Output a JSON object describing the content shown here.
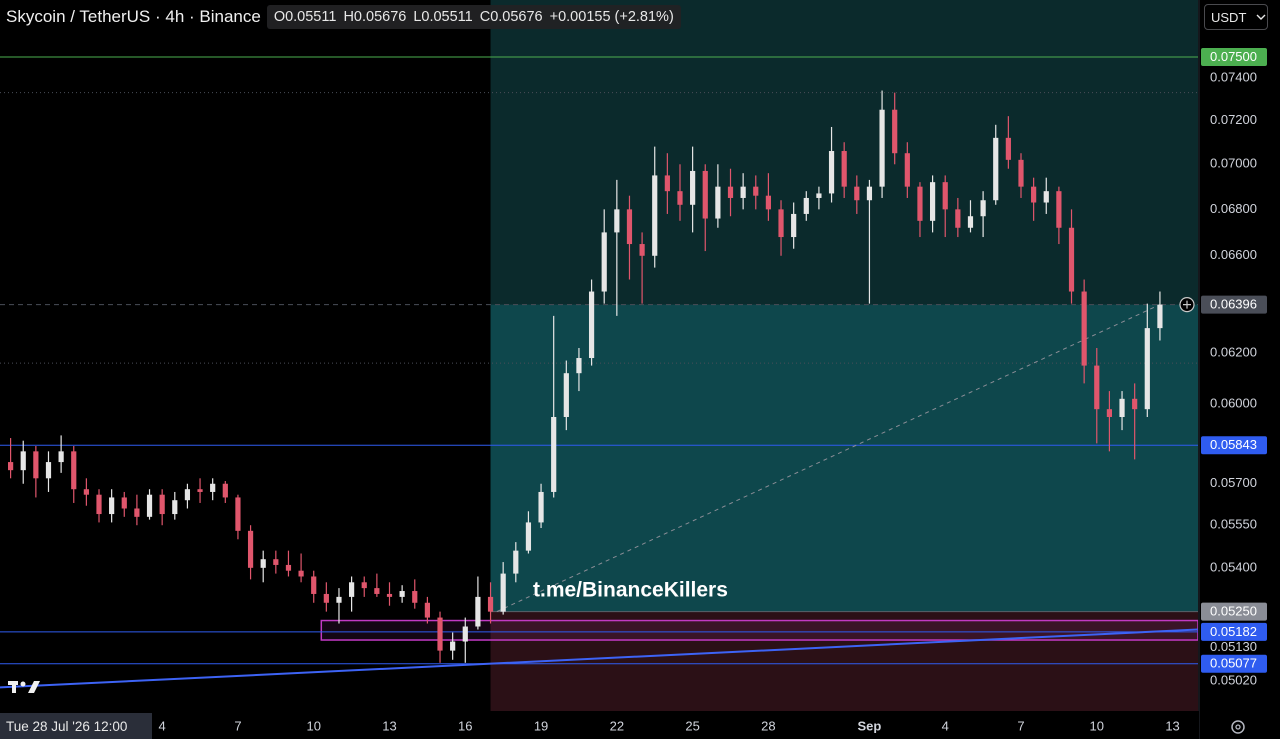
{
  "chart_data": {
    "type": "candlestick",
    "title": "Skycoin / TetherUS · 4h · Binance",
    "ohlc_labels": {
      "open": "O0.05511",
      "high": "H0.05676",
      "low": "L0.05511",
      "close": "C0.05676",
      "change": "+0.00155 (+2.81%)"
    },
    "currency": "USDT",
    "crosshair_label": "Tue 28 Jul '26 12:00",
    "annotation": "t.me/BinanceKillers",
    "log_scale": true,
    "up_color": "#e6e6e6",
    "down_color": "#e0566c",
    "ylim": [
      0.04925,
      0.0778
    ],
    "yticks": [
      {
        "value": 0.074,
        "label": "0.07400"
      },
      {
        "value": 0.072,
        "label": "0.07200"
      },
      {
        "value": 0.07,
        "label": "0.07000"
      },
      {
        "value": 0.068,
        "label": "0.06800"
      },
      {
        "value": 0.066,
        "label": "0.06600"
      },
      {
        "value": 0.062,
        "label": "0.06200"
      },
      {
        "value": 0.06,
        "label": "0.06000"
      },
      {
        "value": 0.057,
        "label": "0.05700"
      },
      {
        "value": 0.0555,
        "label": "0.05550"
      },
      {
        "value": 0.054,
        "label": "0.05400"
      },
      {
        "value": 0.0513,
        "label": "0.05130"
      },
      {
        "value": 0.0502,
        "label": "0.05020"
      }
    ],
    "levels": [
      {
        "value": 0.075,
        "label": "0.07500",
        "color": "#4caf50",
        "line": "solid"
      },
      {
        "value": 0.06396,
        "label": "0.06396",
        "color": "#4a4e58",
        "line": "dashed"
      },
      {
        "value": 0.05843,
        "label": "0.05843",
        "color": "#2f5cf0",
        "line": "solid"
      },
      {
        "value": 0.0525,
        "label": "0.05250",
        "color": "#8a8d96",
        "line": "none"
      },
      {
        "value": 0.05182,
        "label": "0.05182",
        "color": "#2f5cf0",
        "line": "solid"
      },
      {
        "value": 0.05077,
        "label": "0.05077",
        "color": "#2f5cf0",
        "line": "solid"
      }
    ],
    "dotted_levels": [
      0.0733,
      0.0616
    ],
    "trend_line": {
      "x": [
        -1,
        94
      ],
      "y": [
        0.05,
        0.0519
      ],
      "color": "#3d63f5"
    },
    "projection_line": {
      "x": [
        38.5,
        91
      ],
      "y": [
        0.0525,
        0.06396
      ],
      "color": "#8a8d96"
    },
    "zone_box": {
      "x_start": 24.6,
      "top": 0.0522,
      "bottom": 0.05155,
      "color": "#c23ac4"
    },
    "position": {
      "x_start": 38,
      "entry": 0.0525,
      "target": 0.08,
      "stop": 0.048
    },
    "categories": [
      null,
      null,
      null,
      null,
      null,
      null,
      null,
      null,
      null,
      null,
      null,
      null,
      "4",
      null,
      null,
      null,
      null,
      null,
      "7",
      null,
      null,
      null,
      null,
      null,
      "10",
      null,
      null,
      null,
      null,
      null,
      "13",
      null,
      null,
      null,
      null,
      null,
      "16",
      null,
      null,
      null,
      null,
      null,
      "19",
      null,
      null,
      null,
      null,
      null,
      "22",
      null,
      null,
      null,
      null,
      null,
      "25",
      null,
      null,
      null,
      null,
      null,
      "28",
      null,
      null,
      null,
      null,
      null,
      null,
      null,
      "Sep",
      null,
      null,
      null,
      null,
      null,
      "4",
      null,
      null,
      null,
      null,
      null,
      "7",
      null,
      null,
      null,
      null,
      null,
      "10",
      null,
      null,
      null,
      null,
      null,
      "13"
    ],
    "open": [
      0.0578,
      0.0575,
      0.0582,
      0.0572,
      0.0578,
      0.0582,
      0.0568,
      0.0566,
      0.0559,
      0.0565,
      0.0561,
      0.0558,
      0.0566,
      0.0559,
      0.0564,
      0.0568,
      0.0567,
      0.057,
      0.0565,
      0.0553,
      0.054,
      0.0543,
      0.0541,
      0.0539,
      0.0537,
      0.0531,
      0.0528,
      0.053,
      0.0535,
      0.0533,
      0.0531,
      0.053,
      0.0532,
      0.0528,
      0.0523,
      0.0512,
      0.0515,
      0.052,
      0.053,
      0.0525,
      0.0538,
      0.0546,
      0.0556,
      0.0567,
      0.0595,
      0.0612,
      0.0618,
      0.0645,
      0.067,
      0.068,
      0.0665,
      0.066,
      0.0695,
      0.0688,
      0.0682,
      0.0697,
      0.0676,
      0.069,
      0.0685,
      0.069,
      0.0686,
      0.068,
      0.0668,
      0.0678,
      0.0685,
      0.0687,
      0.0706,
      0.069,
      0.0684,
      0.069,
      0.0725,
      0.0705,
      0.069,
      0.0675,
      0.0692,
      0.068,
      0.0672,
      0.0677,
      0.0684,
      0.0712,
      0.0702,
      0.069,
      0.0683,
      0.0688,
      0.0672,
      0.0645,
      0.0615,
      0.0598,
      0.0595,
      0.0602,
      0.0598,
      0.063,
      null
    ],
    "high": [
      0.0587,
      0.0586,
      0.0584,
      0.0582,
      0.0588,
      0.0584,
      0.0572,
      0.0568,
      0.0568,
      0.0567,
      0.0566,
      0.0568,
      0.0568,
      0.0567,
      0.057,
      0.0572,
      0.0572,
      0.0571,
      0.0566,
      0.0555,
      0.0546,
      0.0546,
      0.0546,
      0.0545,
      0.0539,
      0.0535,
      0.0533,
      0.0537,
      0.0537,
      0.0538,
      0.0535,
      0.0534,
      0.0536,
      0.053,
      0.0525,
      0.0518,
      0.0523,
      0.0537,
      0.0535,
      0.0542,
      0.0549,
      0.056,
      0.057,
      0.0635,
      0.0617,
      0.0622,
      0.065,
      0.068,
      0.0693,
      0.0686,
      0.067,
      0.0708,
      0.0705,
      0.07,
      0.0708,
      0.07,
      0.07,
      0.0698,
      0.0696,
      0.0695,
      0.0696,
      0.0684,
      0.0683,
      0.0688,
      0.069,
      0.0717,
      0.071,
      0.0695,
      0.0693,
      0.0734,
      0.0733,
      0.071,
      0.0692,
      0.0695,
      0.0695,
      0.0685,
      0.0684,
      0.0688,
      0.0718,
      0.0722,
      0.0705,
      0.0694,
      0.0694,
      0.069,
      0.068,
      0.065,
      0.0622,
      0.0605,
      0.0605,
      0.0608,
      0.064,
      0.0645,
      null
    ],
    "low": [
      0.0572,
      0.057,
      0.0565,
      0.0567,
      0.0574,
      0.0563,
      0.0562,
      0.0556,
      0.0556,
      0.0558,
      0.0555,
      0.0557,
      0.0555,
      0.0557,
      0.0561,
      0.0563,
      0.0564,
      0.0563,
      0.055,
      0.0536,
      0.0535,
      0.0538,
      0.0537,
      0.0535,
      0.0528,
      0.0525,
      0.0521,
      0.0525,
      0.053,
      0.053,
      0.0527,
      0.0528,
      0.0526,
      0.0521,
      0.0508,
      0.0509,
      0.0508,
      0.0519,
      0.0521,
      0.0524,
      0.0535,
      0.0545,
      0.0554,
      0.0565,
      0.059,
      0.0605,
      0.0615,
      0.064,
      0.0635,
      0.065,
      0.064,
      0.0655,
      0.0678,
      0.0675,
      0.067,
      0.0662,
      0.0672,
      0.0677,
      0.068,
      0.068,
      0.0675,
      0.066,
      0.0663,
      0.0675,
      0.068,
      0.0683,
      0.0685,
      0.0678,
      0.064,
      0.0685,
      0.07,
      0.0685,
      0.0668,
      0.067,
      0.0668,
      0.0668,
      0.067,
      0.0668,
      0.0682,
      0.0698,
      0.0685,
      0.0675,
      0.0678,
      0.0665,
      0.064,
      0.0608,
      0.0585,
      0.0582,
      0.059,
      0.0579,
      0.0595,
      0.0625,
      null
    ],
    "close": [
      0.0575,
      0.0582,
      0.0572,
      0.0578,
      0.0582,
      0.0568,
      0.0566,
      0.0559,
      0.0565,
      0.0561,
      0.0558,
      0.0566,
      0.0559,
      0.0564,
      0.0568,
      0.0567,
      0.057,
      0.0565,
      0.0553,
      0.054,
      0.0543,
      0.0541,
      0.0539,
      0.0537,
      0.0531,
      0.0528,
      0.053,
      0.0535,
      0.0533,
      0.0531,
      0.053,
      0.0532,
      0.0528,
      0.0523,
      0.0512,
      0.0515,
      0.052,
      0.053,
      0.0525,
      0.0538,
      0.0546,
      0.0556,
      0.0567,
      0.0595,
      0.0612,
      0.0618,
      0.0645,
      0.067,
      0.068,
      0.0665,
      0.066,
      0.0695,
      0.0688,
      0.0682,
      0.0697,
      0.0676,
      0.069,
      0.0685,
      0.069,
      0.0686,
      0.068,
      0.0668,
      0.0678,
      0.0685,
      0.0687,
      0.0706,
      0.069,
      0.0684,
      0.069,
      0.0725,
      0.0705,
      0.069,
      0.0675,
      0.0692,
      0.068,
      0.0672,
      0.0677,
      0.0684,
      0.0712,
      0.0702,
      0.069,
      0.0683,
      0.0688,
      0.0672,
      0.0645,
      0.0615,
      0.0598,
      0.0595,
      0.0602,
      0.0598,
      0.063,
      0.06396,
      null
    ]
  }
}
